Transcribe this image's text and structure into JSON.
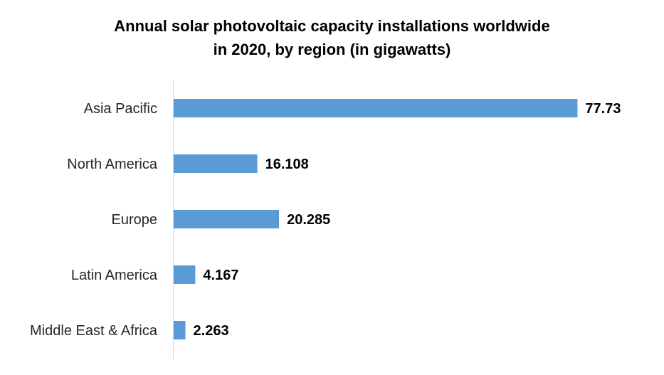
{
  "chart_data": {
    "type": "bar",
    "orientation": "horizontal",
    "title": "Annual solar photovoltaic capacity installations worldwide in 2020, by region (in gigawatts)",
    "title_lines": [
      "Annual solar photovoltaic capacity installations worldwide",
      "in 2020, by region (in gigawatts)"
    ],
    "categories": [
      "Asia Pacific",
      "North America",
      "Europe",
      "Latin America",
      "Middle East & Africa"
    ],
    "values": [
      77.73,
      16.108,
      20.285,
      4.167,
      2.263
    ],
    "value_labels": [
      "77.73",
      "16.108",
      "20.285",
      "4.167",
      "2.263"
    ],
    "xlim": [
      0,
      80
    ],
    "xlabel": "",
    "ylabel": "",
    "grid": false,
    "legend": "none",
    "bar_color": "#5B9BD5",
    "axis_color": "#D9D9D9"
  }
}
